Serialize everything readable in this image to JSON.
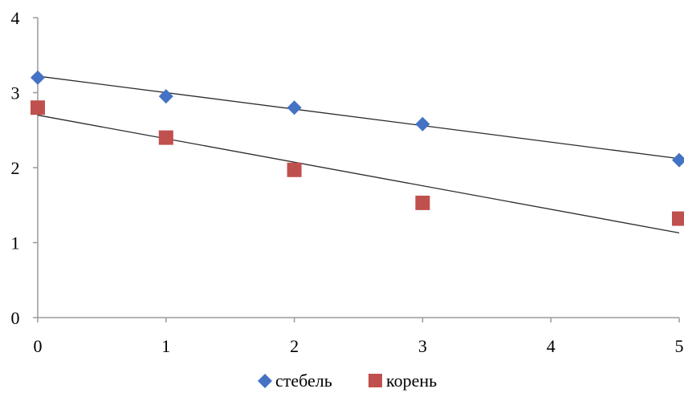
{
  "chart_data": {
    "type": "scatter",
    "title": "",
    "xlabel": "",
    "ylabel": "",
    "xlim": [
      0,
      5
    ],
    "ylim": [
      0,
      4
    ],
    "xticks": [
      "0",
      "1",
      "2",
      "3",
      "4",
      "5"
    ],
    "yticks": [
      "0",
      "1",
      "2",
      "3",
      "4"
    ],
    "grid": false,
    "legend": "bottom",
    "series": [
      {
        "name": "стебель",
        "marker": "diamond",
        "color": "#4472C4",
        "x": [
          0,
          1,
          2,
          3,
          5
        ],
        "y": [
          3.2,
          2.95,
          2.8,
          2.58,
          2.1
        ],
        "trendline": [
          [
            0,
            3.22
          ],
          [
            5,
            2.12
          ]
        ]
      },
      {
        "name": "корень",
        "marker": "square",
        "color": "#C0504D",
        "x": [
          0,
          1,
          2,
          3,
          5
        ],
        "y": [
          2.8,
          2.4,
          1.97,
          1.53,
          1.32
        ],
        "trendline": [
          [
            0,
            2.7
          ],
          [
            5,
            1.13
          ]
        ]
      }
    ]
  }
}
